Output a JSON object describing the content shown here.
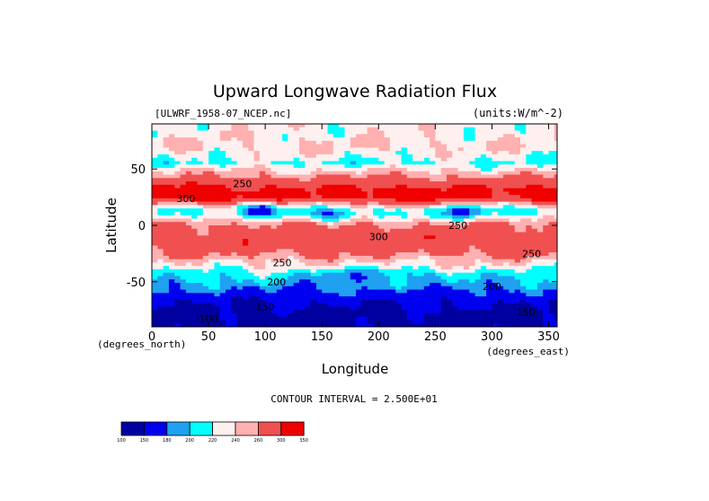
{
  "chart_data": {
    "type": "heatmap",
    "title": "Upward Longwave Radiation Flux",
    "dataset_label": "[ULWRF_1958-07_NCEP.nc]",
    "units_label": "(units:W/m^-2)",
    "xlabel": "Longitude",
    "ylabel": "Latitude",
    "x_unit_note": "(degrees_east)",
    "y_unit_note": "(degrees_north)",
    "xlim": [
      0,
      357.5
    ],
    "ylim": [
      -90,
      90
    ],
    "x_ticks": [
      0,
      50,
      100,
      150,
      200,
      250,
      300,
      350
    ],
    "y_ticks": [
      -50,
      0,
      50
    ],
    "contour_interval_text": "CONTOUR INTERVAL = 2.500E+01",
    "contour_labels": [
      {
        "x": 80,
        "y": 37,
        "text": "250"
      },
      {
        "x": 30,
        "y": 24,
        "text": "300"
      },
      {
        "x": 200,
        "y": -10,
        "text": "300"
      },
      {
        "x": 270,
        "y": 0,
        "text": "250"
      },
      {
        "x": 335,
        "y": -25,
        "text": "250"
      },
      {
        "x": 115,
        "y": -33,
        "text": "250"
      },
      {
        "x": 110,
        "y": -50,
        "text": "200"
      },
      {
        "x": 300,
        "y": -54,
        "text": "200"
      },
      {
        "x": 100,
        "y": -72,
        "text": "150"
      },
      {
        "x": 50,
        "y": -83,
        "text": "100"
      },
      {
        "x": 330,
        "y": -77,
        "text": "150"
      }
    ],
    "colorbar": {
      "levels": [
        100,
        150,
        180,
        200,
        220,
        240,
        260,
        300,
        350
      ],
      "level_labels": [
        "100",
        "150",
        "180",
        "200",
        "220",
        "240",
        "260",
        "300",
        "350"
      ],
      "colors": [
        "#0000a0",
        "#0000f0",
        "#20a0f0",
        "#00ffff",
        "#fff0f0",
        "#ffb0b0",
        "#f05050",
        "#f00000"
      ]
    },
    "zonal_profile": [
      {
        "lat": 90,
        "value": 232
      },
      {
        "lat": 80,
        "value": 232
      },
      {
        "lat": 70,
        "value": 238
      },
      {
        "lat": 62,
        "value": 229
      },
      {
        "lat": 55,
        "value": 217
      },
      {
        "lat": 48,
        "value": 243
      },
      {
        "lat": 38,
        "value": 280
      },
      {
        "lat": 30,
        "value": 308
      },
      {
        "lat": 24,
        "value": 301
      },
      {
        "lat": 18,
        "value": 240
      },
      {
        "lat": 12,
        "value": 206
      },
      {
        "lat": 6,
        "value": 232
      },
      {
        "lat": 0,
        "value": 265
      },
      {
        "lat": -10,
        "value": 282
      },
      {
        "lat": -18,
        "value": 282
      },
      {
        "lat": -26,
        "value": 262
      },
      {
        "lat": -34,
        "value": 238
      },
      {
        "lat": -42,
        "value": 214
      },
      {
        "lat": -50,
        "value": 198
      },
      {
        "lat": -56,
        "value": 183
      },
      {
        "lat": -62,
        "value": 168
      },
      {
        "lat": -70,
        "value": 150
      },
      {
        "lat": -80,
        "value": 138
      },
      {
        "lat": -90,
        "value": 138
      }
    ]
  }
}
